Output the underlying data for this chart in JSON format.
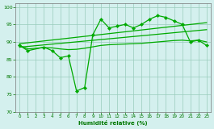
{
  "xlabel": "Humidité relative (%)",
  "bg_color": "#d4f0ee",
  "grid_color": "#99ccbb",
  "line_color": "#00aa00",
  "xlim": [
    -0.5,
    23.5
  ],
  "ylim": [
    70,
    101
  ],
  "yticks": [
    70,
    75,
    80,
    85,
    90,
    95,
    100
  ],
  "xticks": [
    0,
    1,
    2,
    3,
    4,
    5,
    6,
    7,
    8,
    9,
    10,
    11,
    12,
    13,
    14,
    15,
    16,
    17,
    18,
    19,
    20,
    21,
    22,
    23
  ],
  "line_jagged_x": [
    0,
    1,
    3,
    4,
    5,
    6,
    7,
    8,
    9,
    10,
    11,
    12,
    13,
    14,
    15,
    16,
    17,
    18,
    19,
    20,
    21,
    22,
    23
  ],
  "line_jagged_y": [
    89,
    87.5,
    88.5,
    87.5,
    85.5,
    86.0,
    76.0,
    77.0,
    92.0,
    96.5,
    94.0,
    94.5,
    95.0,
    94.0,
    95.0,
    96.5,
    97.5,
    97.0,
    96.0,
    95.0,
    90.0,
    90.5,
    89.0
  ],
  "line_smooth_x": [
    0,
    1,
    2,
    3,
    4,
    5,
    6,
    7,
    8,
    9,
    10,
    11,
    12,
    13,
    14,
    15,
    16,
    17,
    18,
    19,
    20,
    21,
    22,
    23
  ],
  "line_smooth_y": [
    89.0,
    88.0,
    88.2,
    88.4,
    88.3,
    88.0,
    87.8,
    87.9,
    88.2,
    88.6,
    89.0,
    89.2,
    89.3,
    89.4,
    89.5,
    89.6,
    89.8,
    90.0,
    90.2,
    90.4,
    90.5,
    90.3,
    90.5,
    90.0
  ],
  "line_trend1_x": [
    0,
    23
  ],
  "line_trend1_y": [
    88.5,
    93.5
  ],
  "line_trend2_x": [
    0,
    23
  ],
  "line_trend2_y": [
    89.5,
    95.5
  ]
}
